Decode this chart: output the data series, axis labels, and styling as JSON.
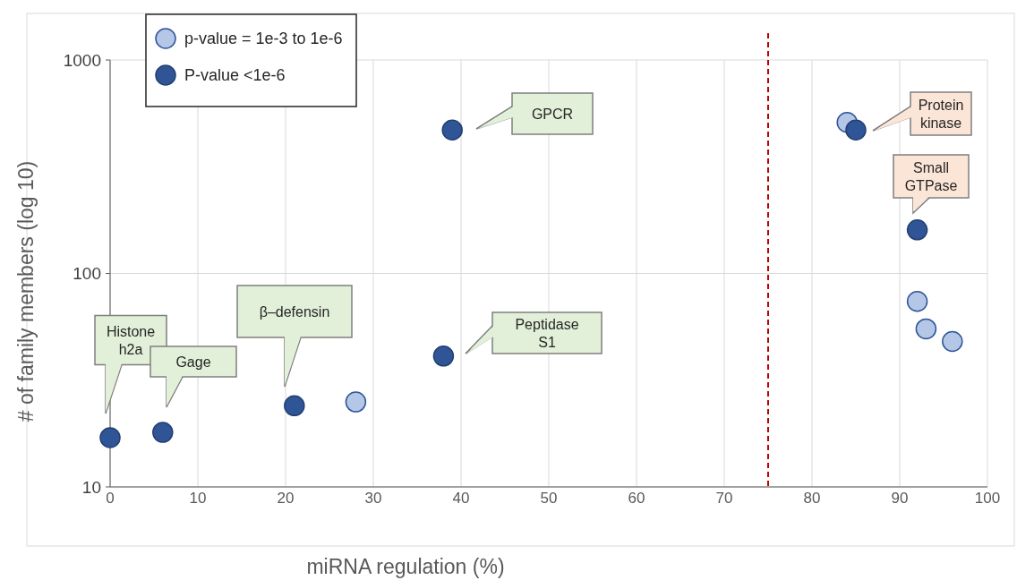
{
  "chart_data": {
    "type": "scatter",
    "xlabel": "miRNA regulation (%)",
    "ylabel": "# of family members  (log 10)",
    "series": [
      {
        "name": "p-value = 1e-3 to 1e-6",
        "color": "#b4c7e7",
        "x": [
          28,
          84,
          92,
          93,
          96
        ],
        "values": [
          25,
          510,
          74,
          55,
          48
        ]
      },
      {
        "name": "P-value <1e-6",
        "color": "#2f5597",
        "x": [
          0,
          6,
          21,
          38,
          39,
          85,
          92
        ],
        "values": [
          17,
          18,
          24,
          41,
          470,
          470,
          160
        ]
      }
    ],
    "xlim": [
      0,
      100
    ],
    "xticks": [
      0,
      10,
      20,
      30,
      40,
      50,
      60,
      70,
      80,
      90,
      100
    ],
    "ylim": [
      10,
      1000
    ],
    "yticks": [
      10,
      100,
      1000
    ],
    "log": true,
    "grid": true,
    "legend": "top left",
    "marker": "circle",
    "ref_lines": [
      {
        "axis": "x",
        "value": 75,
        "color": "#c00000",
        "line_style": "dashed"
      }
    ],
    "annotations": [
      "Histone\nh2a",
      "Gage",
      "β–defensin",
      "Peptidase\nS1",
      "GPCR",
      "Protein\nkinase",
      "Small\nGTPase"
    ]
  }
}
